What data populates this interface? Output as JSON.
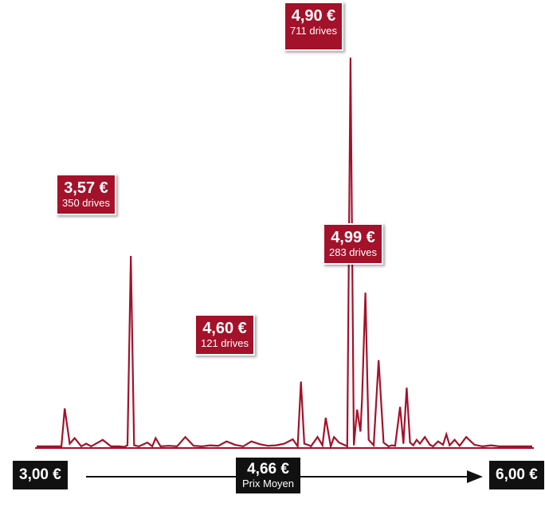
{
  "chart_data": {
    "type": "line",
    "title": "",
    "xlabel": "",
    "ylabel": "",
    "xlim": [
      3.0,
      6.0
    ],
    "ylim": [
      0,
      790
    ],
    "grid": false,
    "colors": {
      "line": "#a3122a",
      "callout": "#a3122a",
      "axis": "#111111"
    },
    "series": [
      {
        "x": [
          3.0,
          3.1,
          3.15,
          3.17,
          3.2,
          3.23,
          3.27,
          3.3,
          3.33,
          3.4,
          3.45,
          3.5,
          3.53,
          3.55,
          3.57,
          3.59,
          3.62,
          3.67,
          3.7,
          3.72,
          3.75,
          3.8,
          3.85,
          3.9,
          3.95,
          4.0,
          4.05,
          4.1,
          4.15,
          4.2,
          4.25,
          4.3,
          4.35,
          4.4,
          4.45,
          4.5,
          4.55,
          4.58,
          4.6,
          4.62,
          4.65,
          4.66,
          4.7,
          4.73,
          4.75,
          4.78,
          4.8,
          4.83,
          4.86,
          4.88,
          4.9,
          4.92,
          4.94,
          4.96,
          4.97,
          4.99,
          5.01,
          5.04,
          5.07,
          5.1,
          5.13,
          5.15,
          5.17,
          5.2,
          5.22,
          5.24,
          5.26,
          5.28,
          5.3,
          5.32,
          5.35,
          5.38,
          5.4,
          5.43,
          5.46,
          5.48,
          5.5,
          5.53,
          5.56,
          5.6,
          5.65,
          5.7,
          5.75,
          5.8,
          5.85,
          5.9,
          5.95,
          6.0
        ],
        "y": [
          3,
          3,
          3,
          72,
          8,
          18,
          3,
          8,
          3,
          15,
          3,
          3,
          2,
          5,
          350,
          5,
          3,
          10,
          3,
          18,
          3,
          4,
          3,
          20,
          4,
          3,
          5,
          4,
          12,
          6,
          3,
          12,
          7,
          4,
          5,
          8,
          16,
          3,
          121,
          8,
          5,
          3,
          20,
          5,
          55,
          3,
          20,
          10,
          6,
          3,
          711,
          5,
          70,
          30,
          90,
          283,
          15,
          5,
          160,
          10,
          3,
          5,
          4,
          75,
          8,
          110,
          10,
          5,
          15,
          8,
          20,
          6,
          3,
          12,
          6,
          25,
          5,
          15,
          4,
          20,
          6,
          3,
          5,
          3,
          3,
          3,
          3,
          3
        ]
      }
    ],
    "annotations": [
      {
        "x": 3.57,
        "price": "3,57 €",
        "count": "350 drives"
      },
      {
        "x": 4.6,
        "price": "4,60 €",
        "count": "121 drives"
      },
      {
        "x": 4.9,
        "price": "4,90 €",
        "count": "711 drives"
      },
      {
        "x": 4.99,
        "price": "4,99 €",
        "count": "283 drives"
      }
    ],
    "axis": {
      "min_label": "3,00 €",
      "max_label": "6,00 €",
      "mean_value": 4.66,
      "mean_price": "4,66 €",
      "mean_label": "Prix Moyen"
    }
  }
}
